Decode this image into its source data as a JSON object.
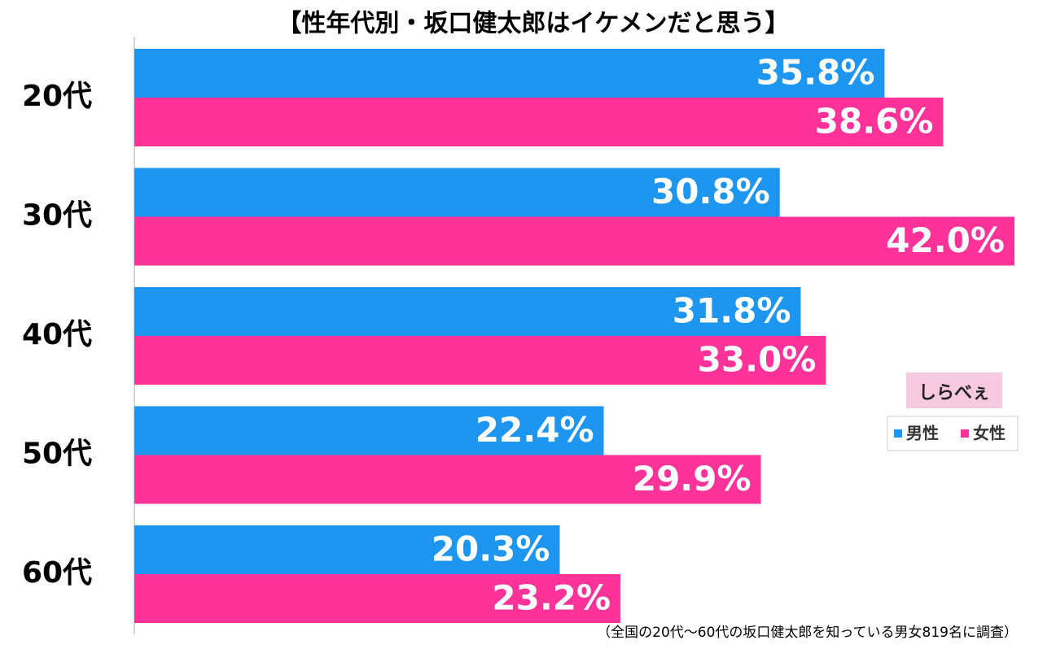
{
  "chart_data": {
    "type": "hbar",
    "title": "【性年代別・坂口健太郎はイケメンだと思う】",
    "categories": [
      "20代",
      "30代",
      "40代",
      "50代",
      "60代"
    ],
    "series": [
      {
        "name": "男性",
        "color": "#1e96f0",
        "values": [
          35.8,
          30.8,
          31.8,
          22.4,
          20.3
        ],
        "value_labels": [
          "35.8%",
          "30.8%",
          "31.8%",
          "22.4%",
          "20.3%"
        ]
      },
      {
        "name": "女性",
        "color": "#fe3399",
        "values": [
          38.6,
          42.0,
          33.0,
          29.9,
          23.2
        ],
        "value_labels": [
          "38.6%",
          "42.0%",
          "33.0%",
          "29.9%",
          "23.2%"
        ]
      }
    ],
    "xlim": [
      0,
      42
    ],
    "legend": "right",
    "logo": "しらべぇ",
    "note": "（全国の20代～60代の坂口健太郎を知っている男女819名に調査）"
  }
}
